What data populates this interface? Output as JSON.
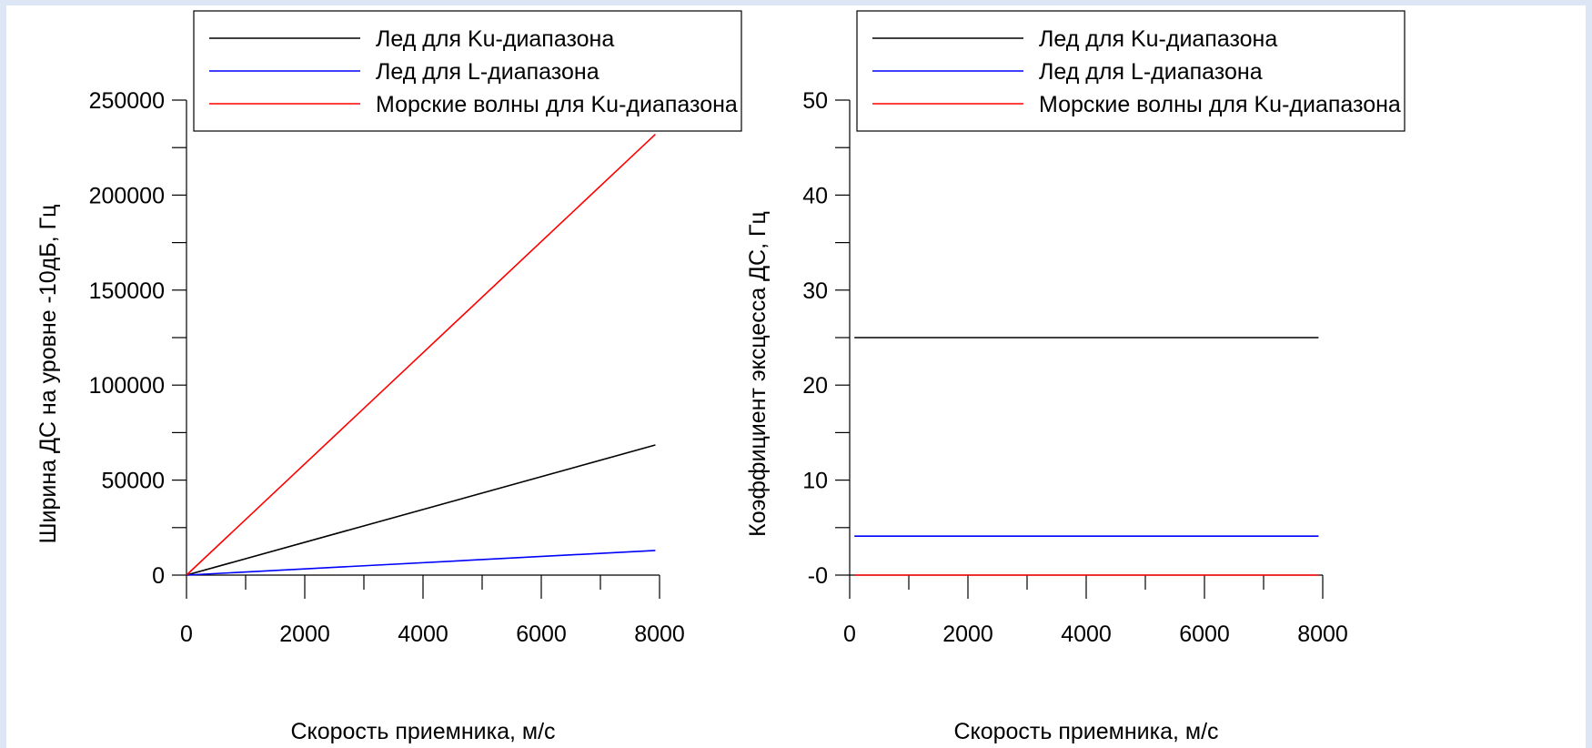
{
  "chart_data": [
    {
      "type": "line",
      "xlabel": "Скорость приемника, м/с",
      "ylabel": "Ширина ДС на уровне -10дБ, Гц",
      "xlim": [
        0,
        8000
      ],
      "ylim": [
        0,
        250000
      ],
      "x_ticks": [
        "0",
        "2000",
        "4000",
        "6000",
        "8000"
      ],
      "y_ticks": [
        "0",
        "50000",
        "100000",
        "150000",
        "200000",
        "250000"
      ],
      "grid": false,
      "legend_position": "top-right",
      "series": [
        {
          "name": "Лед для Ku-диапазона",
          "color": "#000000",
          "x": [
            0,
            7930
          ],
          "y": [
            0,
            68500
          ]
        },
        {
          "name": "Лед для L-диапазона",
          "color": "#0000ff",
          "x": [
            0,
            7930
          ],
          "y": [
            0,
            13000
          ]
        },
        {
          "name": "Морские волны для Ku-диапазона",
          "color": "#ff0000",
          "x": [
            0,
            7930
          ],
          "y": [
            0,
            232000
          ]
        }
      ]
    },
    {
      "type": "line",
      "xlabel": "Скорость приемника, м/с",
      "ylabel": "Коэффициент эксцесса ДС, Гц",
      "xlim": [
        0,
        8000
      ],
      "ylim": [
        0,
        50
      ],
      "x_ticks": [
        "0",
        "2000",
        "4000",
        "6000",
        "8000"
      ],
      "y_ticks": [
        "-0",
        "10",
        "20",
        "30",
        "40",
        "50"
      ],
      "grid": false,
      "legend_position": "top-right",
      "series": [
        {
          "name": "Лед для Ku-диапазона",
          "color": "#000000",
          "x": [
            80,
            7930
          ],
          "y": [
            25,
            25
          ]
        },
        {
          "name": "Лед для L-диапазона",
          "color": "#0000ff",
          "x": [
            80,
            7930
          ],
          "y": [
            4.1,
            4.1
          ]
        },
        {
          "name": "Морские волны для Ku-диапазона",
          "color": "#ff0000",
          "x": [
            80,
            7930
          ],
          "y": [
            0,
            0
          ]
        }
      ]
    }
  ]
}
